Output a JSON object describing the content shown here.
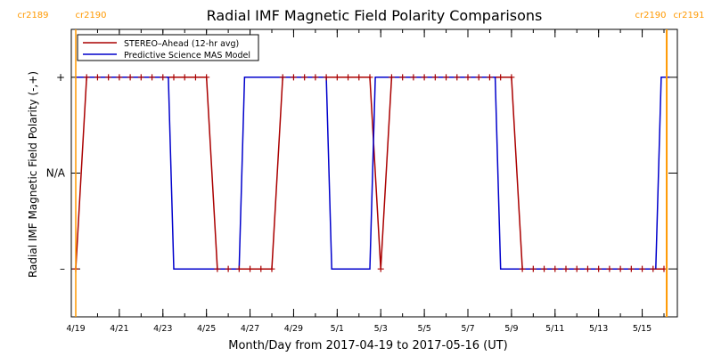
{
  "chart_data": {
    "type": "line",
    "title": "Radial IMF Magnetic Field Polarity Comparisons",
    "xlabel": "Month/Day from 2017-04-19 to 2017-05-16 (UT)",
    "ylabel": "Radial IMF Magnetic Field Polarity (-,+)",
    "xlim": [
      "2017-04-19",
      "2017-05-16"
    ],
    "ylim": [
      -1.5,
      1.5
    ],
    "x_ticks": [
      {
        "date": "2017-04-19",
        "label": "4/19"
      },
      {
        "date": "2017-04-21",
        "label": "4/21"
      },
      {
        "date": "2017-04-23",
        "label": "4/23"
      },
      {
        "date": "2017-04-25",
        "label": "4/25"
      },
      {
        "date": "2017-04-27",
        "label": "4/27"
      },
      {
        "date": "2017-04-29",
        "label": "4/29"
      },
      {
        "date": "2017-05-01",
        "label": "5/1"
      },
      {
        "date": "2017-05-03",
        "label": "5/3"
      },
      {
        "date": "2017-05-05",
        "label": "5/5"
      },
      {
        "date": "2017-05-07",
        "label": "5/7"
      },
      {
        "date": "2017-05-09",
        "label": "5/9"
      },
      {
        "date": "2017-05-11",
        "label": "5/11"
      },
      {
        "date": "2017-05-13",
        "label": "5/13"
      },
      {
        "date": "2017-05-15",
        "label": "5/15"
      }
    ],
    "y_ticks": [
      {
        "value": 1,
        "label": "+"
      },
      {
        "value": 0,
        "label": "N/A"
      },
      {
        "value": -1,
        "label": "–"
      }
    ],
    "legend": {
      "position": "top-left"
    },
    "series": [
      {
        "name": "STEREO–Ahead (12-hr avg)",
        "color": "#aa0000",
        "markers": "plus",
        "x": [
          "2017-04-19 00:00",
          "2017-04-19 12:00",
          "2017-04-20 00:00",
          "2017-04-20 12:00",
          "2017-04-21 00:00",
          "2017-04-21 12:00",
          "2017-04-22 00:00",
          "2017-04-22 12:00",
          "2017-04-23 00:00",
          "2017-04-23 12:00",
          "2017-04-24 00:00",
          "2017-04-24 12:00",
          "2017-04-25 00:00",
          "2017-04-25 12:00",
          "2017-04-26 00:00",
          "2017-04-26 12:00",
          "2017-04-27 00:00",
          "2017-04-27 12:00",
          "2017-04-28 00:00",
          "2017-04-28 12:00",
          "2017-04-29 00:00",
          "2017-04-29 12:00",
          "2017-04-30 00:00",
          "2017-04-30 12:00",
          "2017-05-01 00:00",
          "2017-05-01 12:00",
          "2017-05-02 00:00",
          "2017-05-02 12:00",
          "2017-05-03 00:00",
          "2017-05-03 12:00",
          "2017-05-04 00:00",
          "2017-05-04 12:00",
          "2017-05-05 00:00",
          "2017-05-05 12:00",
          "2017-05-06 00:00",
          "2017-05-06 12:00",
          "2017-05-07 00:00",
          "2017-05-07 12:00",
          "2017-05-08 00:00",
          "2017-05-08 12:00",
          "2017-05-09 00:00",
          "2017-05-09 12:00",
          "2017-05-10 00:00",
          "2017-05-10 12:00",
          "2017-05-11 00:00",
          "2017-05-11 12:00",
          "2017-05-12 00:00",
          "2017-05-12 12:00",
          "2017-05-13 00:00",
          "2017-05-13 12:00",
          "2017-05-14 00:00",
          "2017-05-14 12:00",
          "2017-05-15 00:00",
          "2017-05-15 12:00",
          "2017-05-16 00:00"
        ],
        "y": [
          -1,
          1,
          1,
          1,
          1,
          1,
          1,
          1,
          1,
          1,
          1,
          1,
          1,
          -1,
          -1,
          -1,
          -1,
          -1,
          -1,
          1,
          1,
          1,
          1,
          1,
          1,
          1,
          1,
          1,
          -1,
          1,
          1,
          1,
          1,
          1,
          1,
          1,
          1,
          1,
          1,
          1,
          1,
          -1,
          -1,
          -1,
          -1,
          -1,
          -1,
          -1,
          -1,
          -1,
          -1,
          -1,
          -1,
          -1,
          -1
        ]
      },
      {
        "name": "Predictive Science MAS Model",
        "color": "#0000cc",
        "x": [
          "2017-04-19 00:00",
          "2017-04-23 06:00",
          "2017-04-23 12:00",
          "2017-04-26 12:00",
          "2017-04-26 18:00",
          "2017-04-30 12:00",
          "2017-04-30 18:00",
          "2017-05-02 12:00",
          "2017-05-02 18:00",
          "2017-05-08 06:00",
          "2017-05-08 12:00",
          "2017-05-15 15:00",
          "2017-05-15 21:00",
          "2017-05-16 06:00"
        ],
        "y": [
          1,
          1,
          -1,
          -1,
          1,
          1,
          -1,
          -1,
          1,
          1,
          -1,
          -1,
          1,
          1
        ]
      }
    ],
    "annotations": [
      {
        "text": "cr2189",
        "color": "#ff9900",
        "position": "top-left"
      },
      {
        "text": "cr2190",
        "color": "#ff9900",
        "position": "top-left"
      },
      {
        "text": "cr2190",
        "color": "#ff9900",
        "position": "top-right"
      },
      {
        "text": "cr2191",
        "color": "#ff9900",
        "position": "top-right"
      }
    ],
    "vertical_markers": [
      {
        "date": "2017-04-19 00:00",
        "color": "#ff9900"
      },
      {
        "date": "2017-05-16 03:00",
        "color": "#ff9900"
      }
    ]
  }
}
